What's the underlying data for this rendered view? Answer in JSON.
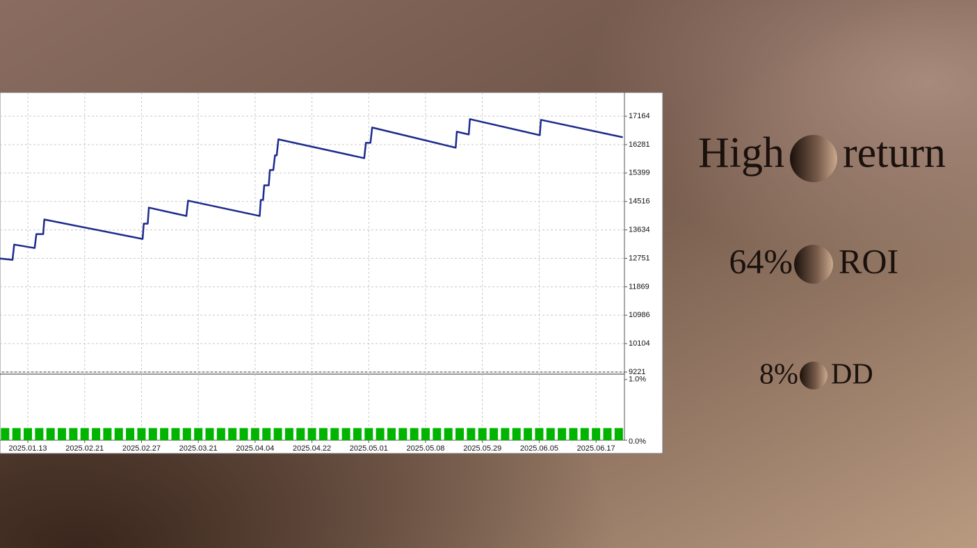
{
  "chart_data": [
    {
      "type": "line",
      "x": [
        -0.49,
        -0.27,
        -0.24,
        0.12,
        0.15,
        0.27,
        0.29,
        2.02,
        2.04,
        2.11,
        2.13,
        2.79,
        2.82,
        4.08,
        4.1,
        4.14,
        4.16,
        4.24,
        4.26,
        4.32,
        4.35,
        4.38,
        4.41,
        5.92,
        5.95,
        6.03,
        6.06,
        7.53,
        7.55,
        7.76,
        7.78,
        9.01,
        9.03,
        10.47
      ],
      "values": [
        12747,
        12704,
        13179,
        13071,
        13504,
        13504,
        13958,
        13352,
        13828,
        13828,
        14326,
        14066,
        14542,
        14066,
        14564,
        14564,
        15018,
        15018,
        15494,
        15494,
        15948,
        15948,
        16446,
        15861,
        16337,
        16337,
        16813,
        16186,
        16683,
        16597,
        17073,
        16575,
        17051,
        16510
      ],
      "color": "#1b2a8c",
      "xlim": [
        -0.49,
        10.5
      ],
      "xticks": [
        {
          "value": 0,
          "label": "2025.01.13"
        },
        {
          "value": 1,
          "label": "2025.02.21"
        },
        {
          "value": 2,
          "label": "2025.02.27"
        },
        {
          "value": 3,
          "label": "2025.03.21"
        },
        {
          "value": 4,
          "label": "2025.04.04"
        },
        {
          "value": 5,
          "label": "2025.04.22"
        },
        {
          "value": 6,
          "label": "2025.05.01"
        },
        {
          "value": 7,
          "label": "2025.05.08"
        },
        {
          "value": 8,
          "label": "2025.05.29"
        },
        {
          "value": 9,
          "label": "2025.06.05"
        },
        {
          "value": 10,
          "label": "2025.06.17"
        }
      ],
      "ylim": [
        9221,
        17900
      ],
      "yticks": [
        9221,
        10104,
        10986,
        11869,
        12751,
        13634,
        14516,
        15399,
        16281,
        17164
      ],
      "grid": true
    },
    {
      "type": "bar",
      "x": [
        -0.4,
        -0.2,
        0,
        0.2,
        0.4,
        0.6,
        0.8,
        1,
        1.2,
        1.4,
        1.6,
        1.8,
        2,
        2.2,
        2.4,
        2.6,
        2.8,
        3,
        3.2,
        3.4,
        3.6,
        3.8,
        4,
        4.2,
        4.4,
        4.6,
        4.8,
        5,
        5.2,
        5.4,
        5.6,
        5.8,
        6,
        6.2,
        6.4,
        6.6,
        6.8,
        7,
        7.2,
        7.4,
        7.6,
        7.8,
        8,
        8.2,
        8.4,
        8.6,
        8.8,
        9,
        9.2,
        9.4,
        9.6,
        9.8,
        10,
        10.2,
        10.4
      ],
      "values": [
        0.2,
        0.2,
        0.2,
        0.2,
        0.2,
        0.2,
        0.2,
        0.2,
        0.2,
        0.2,
        0.2,
        0.2,
        0.2,
        0.2,
        0.2,
        0.2,
        0.2,
        0.2,
        0.2,
        0.2,
        0.2,
        0.2,
        0.2,
        0.2,
        0.2,
        0.2,
        0.2,
        0.2,
        0.2,
        0.2,
        0.2,
        0.2,
        0.2,
        0.2,
        0.2,
        0.2,
        0.2,
        0.2,
        0.2,
        0.2,
        0.2,
        0.2,
        0.2,
        0.2,
        0.2,
        0.2,
        0.2,
        0.2,
        0.2,
        0.2,
        0.2,
        0.2,
        0.2,
        0.2,
        0.2
      ],
      "color": "#00b400",
      "xlim": [
        -0.49,
        10.5
      ],
      "ylim": [
        0,
        1.1
      ],
      "yticks": [
        {
          "value": 0,
          "label": "0.0%"
        },
        {
          "value": 1,
          "label": "1.0%"
        }
      ]
    }
  ],
  "headline": {
    "left": "High",
    "right": "return"
  },
  "stats": [
    {
      "value": "64%",
      "label": "ROI"
    },
    {
      "value": "8%",
      "label": "DD"
    }
  ]
}
